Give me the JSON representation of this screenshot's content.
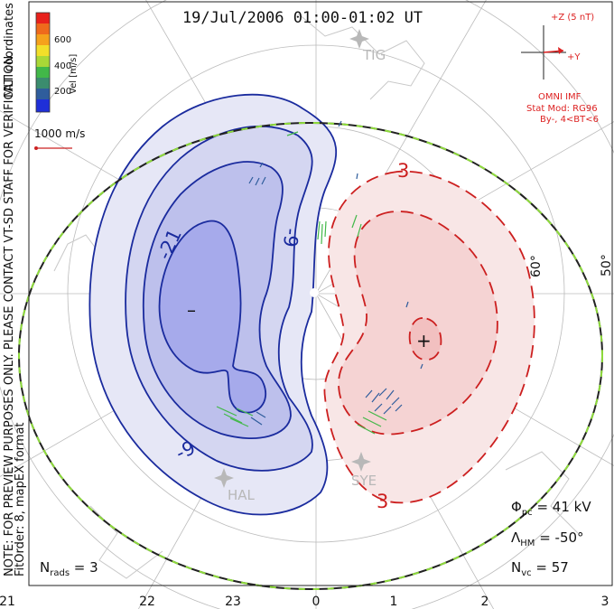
{
  "title": "19/Jul/2006 01:00-01:02 UT",
  "coord_label": "MLT coordinates",
  "note_lines": [
    "NOTE: FOR PREVIEW PURPOSES ONLY. PLEASE CONTACT VT-SD STAFF FOR VERIFICATION.",
    "FitOrder: 8, mapEX format"
  ],
  "colorbar": {
    "label": "Vel [m/s]",
    "ticks": [
      "600",
      "400",
      "200"
    ],
    "colors": [
      "#e8211c",
      "#ef6a1c",
      "#f5a21c",
      "#f2df2a",
      "#aad837",
      "#42b849",
      "#3b8c6e",
      "#2f5d9c",
      "#1f2fd8"
    ]
  },
  "ref_vector": {
    "label": "1000 m/s",
    "color": "#cc2222"
  },
  "imf": {
    "z_label": "+Z (5 nT)",
    "y_label": "+Y",
    "source": "OMNI IMF",
    "model": "Stat Mod: RG96",
    "condition": "By-, 4<BT<6",
    "color": "#dd2222"
  },
  "stations": [
    "TIG",
    "HAL",
    "SYE"
  ],
  "lat_labels": [
    "60°",
    "50°"
  ],
  "contour_labels": {
    "neg": [
      "-21",
      "-9",
      "-9"
    ],
    "pos": [
      "3",
      "3"
    ]
  },
  "extrema": {
    "min_symbol": "–",
    "max_symbol": "+"
  },
  "stats": {
    "phi": "41 kV",
    "lambda": "-50°",
    "nvc": "57",
    "nrads": "3"
  },
  "mlt_axis": [
    "21",
    "22",
    "23",
    "0",
    "1",
    "2",
    "3"
  ],
  "colors": {
    "neg_line": "#1a2b9e",
    "pos_line": "#cc1f1f",
    "neg_fill": [
      "#e6e7f6",
      "#d4d6f1",
      "#bdc0ec",
      "#a6aaeb"
    ],
    "pos_fill": [
      "#f8e6e6",
      "#f5d3d3",
      "#f2c0c0"
    ],
    "grid": "#bbbbbb",
    "hmb": "#222222",
    "hmb_dash": "#8fdc3c"
  }
}
